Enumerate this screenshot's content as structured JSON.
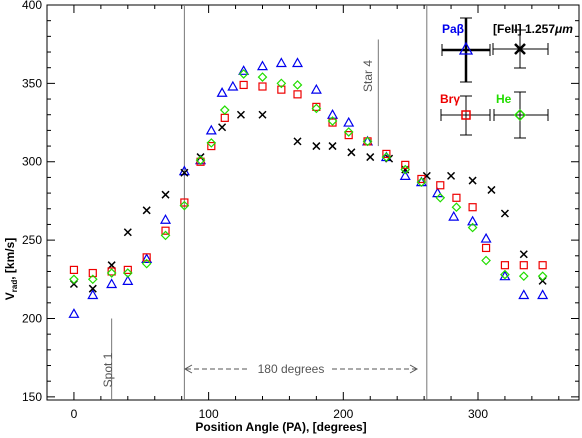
{
  "chart_data": {
    "type": "scatter",
    "xlabel": "Position Angle (PA), [degrees]",
    "ylabel_main": "V",
    "ylabel_sub": "rad",
    "ylabel_rest": ", [km/s]",
    "xlim": [
      -20,
      375
    ],
    "ylim": [
      148,
      400
    ],
    "xticks": [
      0,
      100,
      200,
      300
    ],
    "yticks": [
      150,
      200,
      250,
      300,
      350,
      400
    ],
    "vlines": [
      {
        "x": 82,
        "from": 148,
        "to": 400
      },
      {
        "x": 262,
        "from": 148,
        "to": 400
      },
      {
        "x": 226,
        "from": 310,
        "to": 378
      },
      {
        "x": 28,
        "from": 148,
        "to": 200
      }
    ],
    "annotations": {
      "spot": "Spot 1",
      "star": "Star 4",
      "range": "180 degrees"
    },
    "series": [
      {
        "name": "Paβ",
        "marker": "triangle",
        "color": "#0000ee",
        "x": [
          0,
          14,
          28,
          40,
          54,
          68,
          82,
          94,
          102,
          110,
          118,
          126,
          140,
          154,
          166,
          180,
          192,
          204,
          218,
          232,
          246,
          258,
          270,
          282,
          296,
          306,
          320,
          334,
          348
        ],
        "y": [
          203,
          215,
          222,
          224,
          238,
          263,
          294,
          301,
          320,
          344,
          348,
          358,
          361,
          363,
          363,
          346,
          330,
          325,
          313,
          303,
          291,
          287,
          280,
          265,
          262,
          251,
          227,
          215,
          215
        ]
      },
      {
        "name": "[FeII] 1.257μm",
        "marker": "x",
        "color": "#000000",
        "x": [
          0,
          14,
          28,
          40,
          54,
          68,
          82,
          94,
          110,
          124,
          140,
          166,
          180,
          192,
          206,
          220,
          234,
          246,
          262,
          280,
          296,
          310,
          320,
          334,
          348
        ],
        "y": [
          222,
          219,
          234,
          255,
          269,
          279,
          293,
          303,
          322,
          330,
          330,
          313,
          310,
          310,
          306,
          303,
          302,
          295,
          291,
          291,
          288,
          282,
          267,
          241,
          224
        ]
      },
      {
        "name": "Brγ",
        "marker": "square",
        "color": "#ee0000",
        "x": [
          0,
          14,
          28,
          40,
          54,
          68,
          82,
          94,
          102,
          112,
          126,
          140,
          154,
          166,
          180,
          192,
          204,
          218,
          232,
          246,
          258,
          272,
          284,
          296,
          306,
          320,
          334,
          348
        ],
        "y": [
          231,
          229,
          230,
          231,
          239,
          256,
          274,
          300,
          310,
          328,
          349,
          348,
          346,
          343,
          335,
          325,
          317,
          313,
          305,
          298,
          289,
          285,
          277,
          271,
          245,
          234,
          234,
          234
        ]
      },
      {
        "name": "He",
        "marker": "diamond",
        "color": "#22dd00",
        "x": [
          0,
          14,
          28,
          40,
          54,
          68,
          82,
          94,
          102,
          112,
          126,
          140,
          154,
          166,
          180,
          192,
          204,
          218,
          232,
          246,
          258,
          272,
          284,
          296,
          306,
          320,
          334,
          348
        ],
        "y": [
          225,
          225,
          229,
          229,
          235,
          253,
          272,
          301,
          312,
          333,
          356,
          354,
          350,
          349,
          334,
          326,
          319,
          313,
          303,
          295,
          287,
          277,
          271,
          258,
          237,
          228,
          227,
          227
        ]
      }
    ],
    "legend_labels": {
      "pab": "Paβ",
      "feii_prefix": "[FeII] 1.257",
      "feii_unit": "μm",
      "brg": "Brγ",
      "he": "He"
    }
  }
}
